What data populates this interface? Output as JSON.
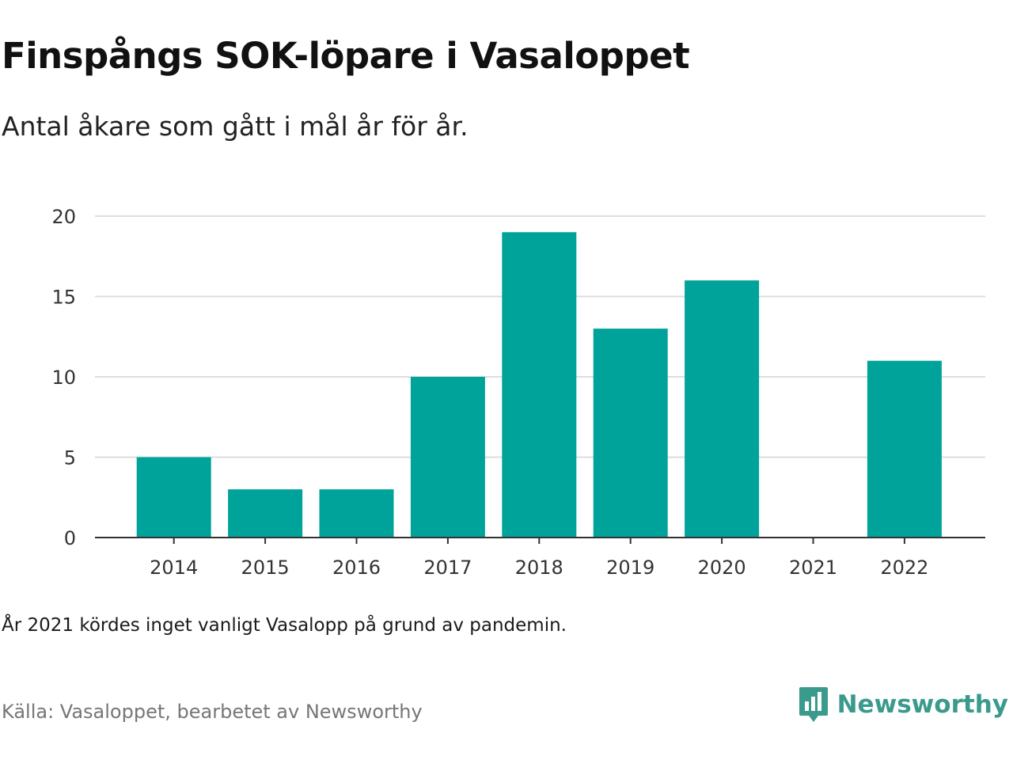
{
  "header": {
    "title": "Finspångs SOK-löpare i Vasaloppet",
    "subtitle": "Antal åkare som gått i mål år för år."
  },
  "footer": {
    "note": "År 2021 kördes inget vanligt Vasalopp på grund av pandemin.",
    "source": "Källa: Vasaloppet, bearbetet av Newsworthy",
    "brand_name": "Newsworthy",
    "brand_icon": "newsworthy-logo-icon"
  },
  "colors": {
    "bar": "#00a39a",
    "grid": "#dddddd",
    "axis": "#333333",
    "brand": "#3a9a8c"
  },
  "chart_data": {
    "type": "bar",
    "categories": [
      "2014",
      "2015",
      "2016",
      "2017",
      "2018",
      "2019",
      "2020",
      "2021",
      "2022"
    ],
    "values": [
      5,
      3,
      3,
      10,
      19,
      13,
      16,
      0,
      11
    ],
    "ylim": [
      0,
      20
    ],
    "yticks": [
      0,
      5,
      10,
      15,
      20
    ],
    "xlabel": "",
    "ylabel": "",
    "grid": true
  }
}
